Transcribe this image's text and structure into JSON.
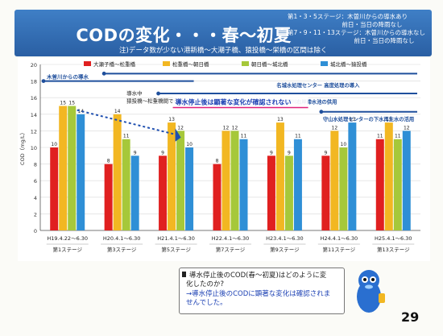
{
  "header": {
    "title": "CODの変化・・・春〜初夏",
    "subtitle": "注)データ数が少ない港新橋〜大潮子橋、猿投橋〜栄橋の区間は除く",
    "notes": [
      "第1・3・5ステージ：木曽川からの導水あり",
      "　　　　　　　　　前日・当日の降雨なし",
      "第7・9・11・13ステージ：木曽川からの導水なし",
      "　　　　　　　　　　　前日・当日の降雨なし"
    ]
  },
  "colors": {
    "series": [
      "#e02020",
      "#f2b722",
      "#a6c83a",
      "#2f8fd6"
    ],
    "header": "#2f6db5",
    "timeline": "#1f4f9c"
  },
  "annotations": {
    "kiso_inflow": "木曽川からの導水",
    "meijo": "名城水処理センター 高度処理の導入",
    "horikawa": "堀川右岸滞水池の供用",
    "moriyama": "守山水処理センターの下水再生水の活用",
    "inflow_note_1": "導水中",
    "inflow_note_2": "猿投橋〜松重橋間で改善",
    "conclusion": "導水停止後は顕著な変化が確認されない"
  },
  "question": {
    "line1": "導水停止後のCOD(春〜初夏)はどのように変",
    "line2": "化したのか?",
    "line3": "→導水停止後のCODに顕著な変化は確認されま",
    "line4": "せんでした。"
  },
  "page_number": "29",
  "chart_data": {
    "type": "bar",
    "ylabel": "COD（mg/L）",
    "ylim": [
      0,
      20
    ],
    "yticks": [
      "0",
      "2",
      "4",
      "6",
      "8",
      "10",
      "12",
      "14",
      "16",
      "18",
      "20"
    ],
    "categories": [
      "H19.4.22〜6.30",
      "H20.4.1〜6.30",
      "H21.4.1〜6.30",
      "H22.4.1〜6.30",
      "H23.4.1〜6.30",
      "H24.4.1〜6.30",
      "H25.4.1〜6.30"
    ],
    "stages": [
      "第1ステージ",
      "第3ステージ",
      "第5ステージ",
      "第7ステージ",
      "第9ステージ",
      "第11ステージ",
      "第13ステージ"
    ],
    "series": [
      {
        "name": "大瀬子橋〜松重橋",
        "values": [
          10,
          8,
          9,
          8,
          9,
          9,
          11
        ],
        "labels": [
          "10",
          "8",
          "9",
          "8",
          "9",
          "9",
          "11"
        ]
      },
      {
        "name": "松重橋〜朝日橋",
        "values": [
          15,
          14,
          13,
          12,
          13,
          12,
          13
        ],
        "labels": [
          "15",
          "14",
          "13",
          "12",
          "13",
          "12",
          "13"
        ]
      },
      {
        "name": "朝日橋〜城北橋",
        "values": [
          15,
          11,
          12,
          12,
          9,
          10,
          11
        ],
        "labels": [
          "15",
          "11",
          "12",
          "12",
          "9",
          "10",
          "11"
        ]
      },
      {
        "name": "城北橋〜猿投橋",
        "values": [
          14,
          9,
          10,
          11,
          11,
          13,
          12
        ],
        "labels": [
          "14",
          "9",
          "10",
          "11",
          "11",
          "13",
          "12"
        ]
      }
    ]
  }
}
